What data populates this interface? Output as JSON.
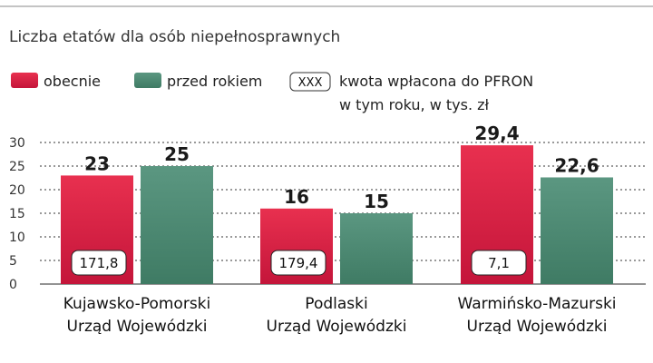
{
  "chart_data": {
    "type": "bar",
    "title": "Liczba etatów dla osób niepełnosprawnych",
    "ylim": [
      0,
      30
    ],
    "yticks": [
      "0",
      "5",
      "10",
      "15",
      "20",
      "25",
      "30"
    ],
    "categories": [
      [
        "Kujawsko-Pomorski",
        "Urząd Wojewódzki"
      ],
      [
        "Podlaski",
        "Urząd Wojewódzki"
      ],
      [
        "Warmińsko-Mazurski",
        "Urząd Wojewódzki"
      ]
    ],
    "series": [
      {
        "name": "obecnie",
        "values": [
          23,
          16,
          29.4
        ],
        "labels": [
          "23",
          "16",
          "29,4"
        ],
        "color": "#d81f45"
      },
      {
        "name": "przed rokiem",
        "values": [
          25,
          15,
          22.6
        ],
        "labels": [
          "25",
          "15",
          "22,6"
        ],
        "color": "#4f8a74"
      }
    ],
    "pfron": {
      "legend_symbol": "XXX",
      "legend_text": [
        "kwota wpłacona do PFRON",
        "w tym roku, w tys. zł"
      ],
      "values": [
        "171,8",
        "179,4",
        "7,1"
      ]
    }
  }
}
